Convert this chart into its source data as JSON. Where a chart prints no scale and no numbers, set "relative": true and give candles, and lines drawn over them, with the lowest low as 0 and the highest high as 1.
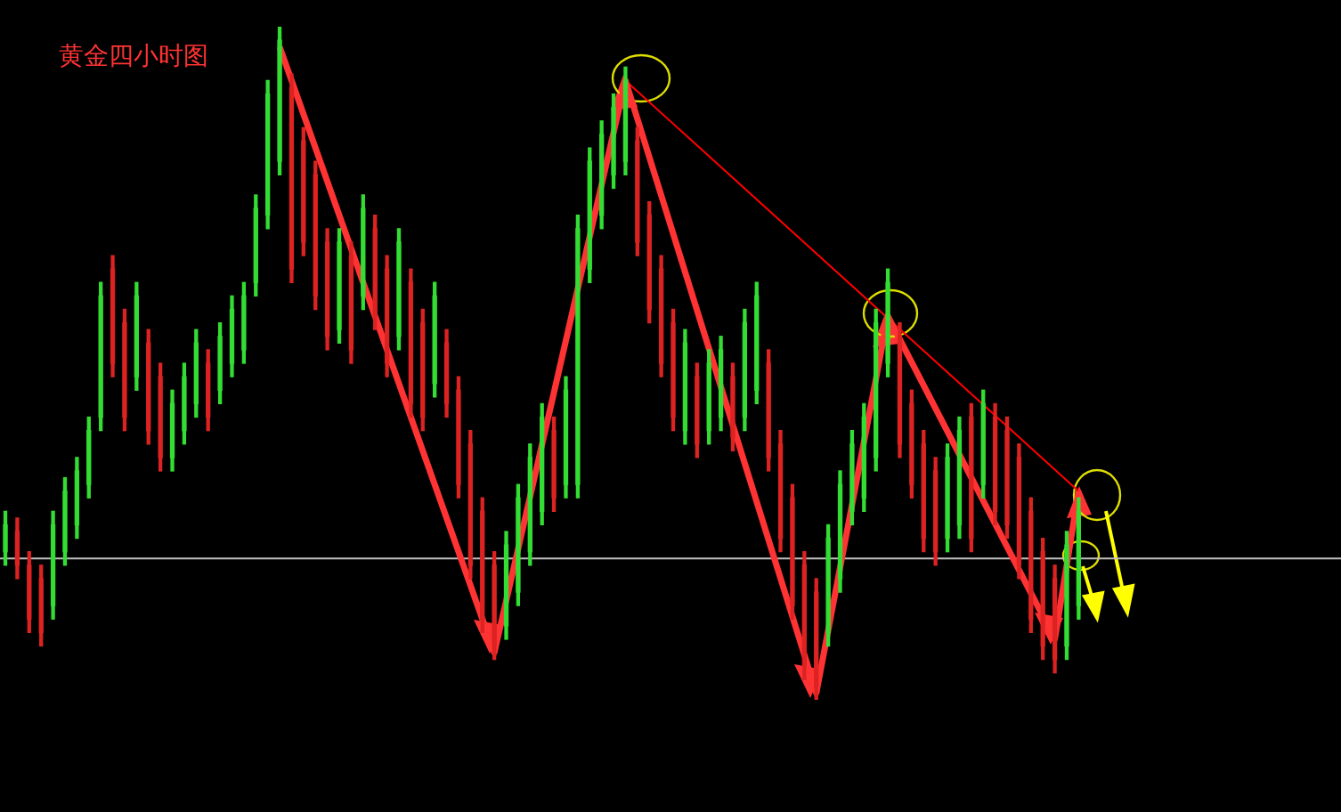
{
  "chart_data": {
    "type": "candlestick",
    "title": "黄金四小时图",
    "relative": true,
    "grid": false,
    "legend": false,
    "categories": [
      null,
      null,
      null,
      null,
      null,
      null,
      null,
      null,
      null,
      null,
      null,
      null,
      null,
      null,
      null,
      null,
      null,
      null,
      null,
      null,
      null,
      null,
      null,
      null,
      null,
      null,
      null,
      null,
      null,
      null,
      null,
      null,
      null,
      null,
      null,
      null,
      null,
      null,
      null,
      null,
      null,
      null,
      null,
      null,
      null,
      null,
      null,
      null,
      null,
      null,
      null,
      null,
      null,
      null,
      null,
      null,
      null,
      null,
      null,
      null,
      null,
      null,
      null,
      null,
      null,
      null,
      null,
      null,
      null,
      null,
      null,
      null,
      null,
      null,
      null,
      null,
      null,
      null,
      null,
      null,
      null,
      null,
      null,
      null,
      null,
      null,
      null,
      null,
      null,
      null,
      null
    ],
    "ohlc": [
      [
        0.22,
        0.28,
        0.2,
        0.26
      ],
      [
        0.25,
        0.27,
        0.18,
        0.2
      ],
      [
        0.2,
        0.22,
        0.1,
        0.12
      ],
      [
        0.18,
        0.2,
        0.08,
        0.1
      ],
      [
        0.14,
        0.28,
        0.12,
        0.26
      ],
      [
        0.22,
        0.33,
        0.2,
        0.31
      ],
      [
        0.26,
        0.36,
        0.24,
        0.34
      ],
      [
        0.32,
        0.42,
        0.3,
        0.4
      ],
      [
        0.42,
        0.62,
        0.4,
        0.6
      ],
      [
        0.64,
        0.66,
        0.48,
        0.5
      ],
      [
        0.56,
        0.58,
        0.4,
        0.42
      ],
      [
        0.48,
        0.62,
        0.46,
        0.6
      ],
      [
        0.53,
        0.55,
        0.38,
        0.4
      ],
      [
        0.48,
        0.5,
        0.34,
        0.36
      ],
      [
        0.36,
        0.46,
        0.34,
        0.44
      ],
      [
        0.4,
        0.5,
        0.38,
        0.48
      ],
      [
        0.44,
        0.55,
        0.42,
        0.53
      ],
      [
        0.5,
        0.52,
        0.4,
        0.42
      ],
      [
        0.46,
        0.56,
        0.44,
        0.54
      ],
      [
        0.5,
        0.6,
        0.48,
        0.58
      ],
      [
        0.52,
        0.62,
        0.5,
        0.6
      ],
      [
        0.62,
        0.75,
        0.6,
        0.73
      ],
      [
        0.72,
        0.92,
        0.7,
        0.9
      ],
      [
        0.8,
        1.0,
        0.78,
        0.98
      ],
      [
        0.91,
        0.93,
        0.62,
        0.64
      ],
      [
        0.83,
        0.85,
        0.66,
        0.68
      ],
      [
        0.78,
        0.8,
        0.58,
        0.6
      ],
      [
        0.68,
        0.7,
        0.52,
        0.54
      ],
      [
        0.55,
        0.7,
        0.53,
        0.68
      ],
      [
        0.66,
        0.68,
        0.5,
        0.52
      ],
      [
        0.6,
        0.75,
        0.58,
        0.73
      ],
      [
        0.7,
        0.72,
        0.55,
        0.57
      ],
      [
        0.64,
        0.66,
        0.48,
        0.5
      ],
      [
        0.54,
        0.7,
        0.52,
        0.68
      ],
      [
        0.62,
        0.64,
        0.42,
        0.44
      ],
      [
        0.56,
        0.58,
        0.4,
        0.42
      ],
      [
        0.47,
        0.62,
        0.45,
        0.6
      ],
      [
        0.53,
        0.55,
        0.42,
        0.44
      ],
      [
        0.46,
        0.48,
        0.3,
        0.32
      ],
      [
        0.38,
        0.4,
        0.18,
        0.2
      ],
      [
        0.28,
        0.3,
        0.1,
        0.12
      ],
      [
        0.2,
        0.22,
        0.06,
        0.08
      ],
      [
        0.11,
        0.25,
        0.09,
        0.23
      ],
      [
        0.16,
        0.32,
        0.14,
        0.3
      ],
      [
        0.22,
        0.38,
        0.2,
        0.36
      ],
      [
        0.28,
        0.44,
        0.26,
        0.42
      ],
      [
        0.4,
        0.42,
        0.28,
        0.3
      ],
      [
        0.32,
        0.48,
        0.3,
        0.46
      ],
      [
        0.32,
        0.72,
        0.3,
        0.7
      ],
      [
        0.64,
        0.82,
        0.62,
        0.8
      ],
      [
        0.72,
        0.86,
        0.7,
        0.84
      ],
      [
        0.78,
        0.9,
        0.76,
        0.88
      ],
      [
        0.8,
        0.94,
        0.78,
        0.92
      ],
      [
        0.83,
        0.85,
        0.66,
        0.68
      ],
      [
        0.72,
        0.74,
        0.56,
        0.58
      ],
      [
        0.64,
        0.66,
        0.48,
        0.5
      ],
      [
        0.56,
        0.58,
        0.4,
        0.42
      ],
      [
        0.4,
        0.55,
        0.38,
        0.53
      ],
      [
        0.48,
        0.5,
        0.36,
        0.38
      ],
      [
        0.4,
        0.52,
        0.38,
        0.5
      ],
      [
        0.42,
        0.54,
        0.4,
        0.52
      ],
      [
        0.48,
        0.5,
        0.37,
        0.39
      ],
      [
        0.42,
        0.58,
        0.4,
        0.56
      ],
      [
        0.46,
        0.62,
        0.44,
        0.6
      ],
      [
        0.5,
        0.52,
        0.34,
        0.36
      ],
      [
        0.38,
        0.4,
        0.22,
        0.24
      ],
      [
        0.3,
        0.32,
        0.12,
        0.14
      ],
      [
        0.2,
        0.22,
        0.03,
        0.05
      ],
      [
        0.16,
        0.18,
        0.0,
        0.02
      ],
      [
        0.1,
        0.26,
        0.08,
        0.24
      ],
      [
        0.18,
        0.34,
        0.16,
        0.32
      ],
      [
        0.28,
        0.4,
        0.26,
        0.38
      ],
      [
        0.3,
        0.44,
        0.28,
        0.42
      ],
      [
        0.36,
        0.58,
        0.34,
        0.56
      ],
      [
        0.5,
        0.64,
        0.48,
        0.62
      ],
      [
        0.54,
        0.56,
        0.36,
        0.38
      ],
      [
        0.44,
        0.46,
        0.3,
        0.32
      ],
      [
        0.38,
        0.4,
        0.22,
        0.24
      ],
      [
        0.34,
        0.36,
        0.2,
        0.22
      ],
      [
        0.24,
        0.38,
        0.22,
        0.36
      ],
      [
        0.26,
        0.42,
        0.24,
        0.4
      ],
      [
        0.42,
        0.44,
        0.22,
        0.24
      ],
      [
        0.32,
        0.46,
        0.3,
        0.44
      ],
      [
        0.42,
        0.44,
        0.26,
        0.28
      ],
      [
        0.4,
        0.42,
        0.24,
        0.26
      ],
      [
        0.36,
        0.38,
        0.18,
        0.2
      ],
      [
        0.28,
        0.3,
        0.1,
        0.12
      ],
      [
        0.22,
        0.24,
        0.06,
        0.08
      ],
      [
        0.18,
        0.2,
        0.04,
        0.06
      ],
      [
        0.08,
        0.25,
        0.06,
        0.23
      ],
      [
        0.14,
        0.3,
        0.12,
        0.28
      ]
    ],
    "colors": [
      "#33dd33",
      "#dd2222",
      "#dd2222",
      "#dd2222",
      "#33dd33",
      "#33dd33",
      "#33dd33",
      "#33dd33",
      "#33dd33",
      "#dd2222",
      "#dd2222",
      "#33dd33",
      "#dd2222",
      "#dd2222",
      "#33dd33",
      "#33dd33",
      "#33dd33",
      "#dd2222",
      "#33dd33",
      "#33dd33",
      "#33dd33",
      "#33dd33",
      "#33dd33",
      "#33dd33",
      "#dd2222",
      "#dd2222",
      "#dd2222",
      "#dd2222",
      "#33dd33",
      "#dd2222",
      "#33dd33",
      "#dd2222",
      "#dd2222",
      "#33dd33",
      "#dd2222",
      "#dd2222",
      "#33dd33",
      "#dd2222",
      "#dd2222",
      "#dd2222",
      "#dd2222",
      "#dd2222",
      "#33dd33",
      "#33dd33",
      "#33dd33",
      "#33dd33",
      "#dd2222",
      "#33dd33",
      "#33dd33",
      "#33dd33",
      "#33dd33",
      "#33dd33",
      "#33dd33",
      "#dd2222",
      "#dd2222",
      "#dd2222",
      "#dd2222",
      "#33dd33",
      "#dd2222",
      "#33dd33",
      "#33dd33",
      "#dd2222",
      "#33dd33",
      "#33dd33",
      "#dd2222",
      "#dd2222",
      "#dd2222",
      "#dd2222",
      "#dd2222",
      "#33dd33",
      "#33dd33",
      "#33dd33",
      "#33dd33",
      "#33dd33",
      "#33dd33",
      "#dd2222",
      "#dd2222",
      "#dd2222",
      "#dd2222",
      "#33dd33",
      "#33dd33",
      "#dd2222",
      "#33dd33",
      "#dd2222",
      "#dd2222",
      "#dd2222",
      "#dd2222",
      "#dd2222",
      "#dd2222",
      "#33dd33",
      "#33dd33"
    ],
    "series": [
      {
        "type": "line",
        "color": "#ff3333",
        "values": [
          null,
          null,
          null,
          null,
          null,
          null,
          null,
          null,
          null,
          null,
          null,
          null,
          null,
          null,
          null,
          null,
          null,
          null,
          null,
          null,
          null,
          null,
          null,
          0.97,
          null,
          null,
          null,
          null,
          null,
          null,
          null,
          null,
          null,
          null,
          null,
          null,
          null,
          null,
          null,
          null,
          null,
          0.07,
          null,
          null,
          null,
          null,
          null,
          null,
          null,
          null,
          null,
          null,
          0.92,
          null,
          null,
          null,
          null,
          null,
          null,
          null,
          null,
          null,
          null,
          null,
          null,
          null,
          null,
          null,
          0.01,
          null,
          null,
          null,
          null,
          null,
          0.57,
          null,
          null,
          null,
          null,
          null,
          null,
          null,
          null,
          null,
          null,
          null,
          null,
          null,
          0.09,
          null,
          0.31
        ]
      },
      {
        "type": "line",
        "color": "#ff0000",
        "values": [
          null,
          null,
          null,
          null,
          null,
          null,
          null,
          null,
          null,
          null,
          null,
          null,
          null,
          null,
          null,
          null,
          null,
          null,
          null,
          null,
          null,
          null,
          null,
          null,
          null,
          null,
          null,
          null,
          null,
          null,
          null,
          null,
          null,
          null,
          null,
          null,
          null,
          null,
          null,
          null,
          null,
          null,
          null,
          null,
          null,
          null,
          null,
          null,
          null,
          null,
          null,
          null,
          0.92,
          null,
          null,
          null,
          null,
          null,
          null,
          null,
          null,
          null,
          null,
          null,
          null,
          null,
          null,
          null,
          null,
          null,
          null,
          null,
          null,
          null,
          null,
          null,
          null,
          null,
          null,
          null,
          null,
          null,
          null,
          null,
          null,
          null,
          null,
          null,
          null,
          null,
          0.31
        ]
      }
    ],
    "ref_lines": [
      {
        "axis": "y",
        "value": 0.21,
        "color": "#c0c0c0"
      }
    ]
  }
}
